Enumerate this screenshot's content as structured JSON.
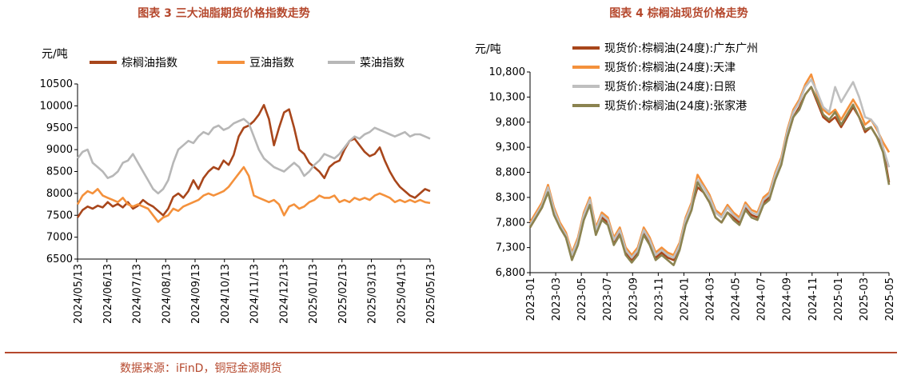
{
  "charts": [
    {
      "title": "图表 3  三大油脂期货价格指数走势",
      "chart_data": {
        "type": "line",
        "ylabel": "元/吨",
        "ylim": [
          6500,
          10500
        ],
        "yticks": [
          6500,
          7000,
          7500,
          8000,
          8500,
          9000,
          9500,
          10000,
          10500
        ],
        "x_tick_labels": [
          "2024/05/13",
          "2024/06/13",
          "2024/07/13",
          "2024/08/13",
          "2024/09/13",
          "2024/10/13",
          "2024/11/13",
          "2024/12/13",
          "2025/01/13",
          "2025/02/13",
          "2025/03/13",
          "2025/04/13",
          "2025/05/13"
        ],
        "legend_position": "top",
        "series": [
          {
            "name": "棕榈油指数",
            "color": "#a8461b",
            "values": [
              7450,
              7620,
              7700,
              7650,
              7720,
              7680,
              7800,
              7700,
              7760,
              7680,
              7800,
              7650,
              7720,
              7850,
              7760,
              7700,
              7600,
              7500,
              7650,
              7920,
              8000,
              7900,
              8050,
              8300,
              8100,
              8350,
              8500,
              8600,
              8550,
              8750,
              8650,
              8880,
              9300,
              9500,
              9550,
              9650,
              9800,
              10020,
              9700,
              9100,
              9500,
              9850,
              9920,
              9500,
              9000,
              8900,
              8700,
              8600,
              8500,
              8350,
              8600,
              8700,
              8750,
              9000,
              9200,
              9250,
              9100,
              8950,
              8850,
              8900,
              9050,
              8750,
              8500,
              8300,
              8150,
              8050,
              7950,
              7900,
              8000,
              8100,
              8050
            ]
          },
          {
            "name": "豆油指数",
            "color": "#f4913c",
            "values": [
              7750,
              7950,
              8050,
              8000,
              8100,
              7950,
              7900,
              7850,
              7800,
              7900,
              7750,
              7700,
              7750,
              7700,
              7650,
              7500,
              7350,
              7450,
              7500,
              7650,
              7600,
              7700,
              7750,
              7800,
              7850,
              7950,
              8000,
              7950,
              8000,
              8050,
              8150,
              8300,
              8450,
              8600,
              8400,
              7950,
              7900,
              7850,
              7800,
              7850,
              7750,
              7500,
              7700,
              7750,
              7650,
              7700,
              7800,
              7850,
              7950,
              7900,
              7900,
              7950,
              7800,
              7850,
              7800,
              7900,
              7850,
              7900,
              7850,
              7950,
              8000,
              7950,
              7900,
              7800,
              7850,
              7800,
              7850,
              7800,
              7850,
              7800,
              7780
            ]
          },
          {
            "name": "菜油指数",
            "color": "#b7b7b7",
            "values": [
              8800,
              8950,
              9000,
              8700,
              8600,
              8500,
              8350,
              8400,
              8500,
              8700,
              8750,
              8900,
              8700,
              8500,
              8300,
              8100,
              8000,
              8100,
              8300,
              8700,
              9000,
              9100,
              9200,
              9150,
              9300,
              9400,
              9350,
              9500,
              9550,
              9450,
              9500,
              9600,
              9650,
              9700,
              9600,
              9300,
              9000,
              8800,
              8700,
              8600,
              8550,
              8500,
              8600,
              8700,
              8600,
              8400,
              8500,
              8650,
              8750,
              8900,
              8850,
              8800,
              8900,
              9050,
              9200,
              9300,
              9250,
              9350,
              9400,
              9500,
              9450,
              9400,
              9350,
              9300,
              9350,
              9400,
              9300,
              9350,
              9350,
              9300,
              9250
            ]
          }
        ]
      }
    },
    {
      "title": "图表 4  棕榈油现货价格走势",
      "chart_data": {
        "type": "line",
        "ylabel": "元/吨",
        "ylim": [
          6800,
          10800
        ],
        "yticks": [
          "6,800",
          "7,300",
          "7,800",
          "8,300",
          "8,800",
          "9,300",
          "9,800",
          "10,300",
          "10,800"
        ],
        "ytick_values": [
          6800,
          7300,
          7800,
          8300,
          8800,
          9300,
          9800,
          10300,
          10800
        ],
        "x_tick_labels": [
          "2023-01",
          "2023-03",
          "2023-05",
          "2023-07",
          "2023-09",
          "2023-11",
          "2024-01",
          "2024-03",
          "2024-05",
          "2024-07",
          "2024-09",
          "2024-11",
          "2025-01",
          "2025-03",
          "2025-05"
        ],
        "legend_position": "top-right",
        "series": [
          {
            "name": "现货价:棕榈油(24度):广东广州",
            "color": "#a8461b",
            "values": [
              7700,
              7900,
              8100,
              8450,
              8000,
              7700,
              7500,
              7100,
              7400,
              7900,
              8200,
              7600,
              7900,
              7800,
              7400,
              7600,
              7200,
              7050,
              7200,
              7600,
              7400,
              7100,
              7200,
              7100,
              7050,
              7300,
              7800,
              8100,
              8500,
              8400,
              8200,
              7900,
              7800,
              8000,
              7900,
              7800,
              8100,
              7950,
              7900,
              8200,
              8300,
              8700,
              9000,
              9500,
              9900,
              10100,
              10350,
              10500,
              10200,
              9900,
              9800,
              9900,
              9700,
              9900,
              10100,
              9900,
              9600,
              9700,
              9500,
              9300,
              8600
            ]
          },
          {
            "name": "现货价:棕榈油(24度):天津",
            "color": "#f4913c",
            "values": [
              7800,
              8000,
              8200,
              8550,
              8100,
              7800,
              7600,
              7200,
              7500,
              8000,
              8300,
              7700,
              8000,
              7900,
              7500,
              7700,
              7300,
              7150,
              7300,
              7700,
              7500,
              7200,
              7300,
              7200,
              7150,
              7400,
              7900,
              8200,
              8750,
              8550,
              8350,
              8050,
              7950,
              8150,
              8000,
              7900,
              8200,
              8050,
              8000,
              8300,
              8400,
              8800,
              9100,
              9650,
              10050,
              10250,
              10550,
              10750,
              10350,
              10050,
              9950,
              10050,
              9850,
              10050,
              10250,
              10050,
              9750,
              9850,
              9650,
              9400,
              9200
            ]
          },
          {
            "name": "现货价:棕榈油(24度):日照",
            "color": "#bfbfbf",
            "values": [
              7750,
              7950,
              8150,
              8500,
              8050,
              7750,
              7550,
              7150,
              7450,
              7950,
              8250,
              7650,
              7950,
              7850,
              7450,
              7650,
              7250,
              7100,
              7250,
              7650,
              7450,
              7150,
              7250,
              7150,
              7100,
              7350,
              7850,
              8150,
              8650,
              8500,
              8300,
              8000,
              7900,
              8100,
              7950,
              7850,
              8150,
              8000,
              7950,
              8250,
              8350,
              8750,
              9050,
              9600,
              10000,
              10200,
              10500,
              10650,
              10400,
              10100,
              10000,
              10500,
              10200,
              10400,
              10600,
              10300,
              9900,
              9850,
              9700,
              9300,
              8900
            ]
          },
          {
            "name": "现货价:棕榈油(24度):张家港",
            "color": "#8b8350",
            "values": [
              7700,
              7900,
              8100,
              8400,
              7950,
              7700,
              7500,
              7050,
              7350,
              7850,
              8150,
              7550,
              7850,
              7750,
              7350,
              7550,
              7150,
              7000,
              7150,
              7550,
              7350,
              7050,
              7150,
              7050,
              6950,
              7250,
              7750,
              8050,
              8600,
              8400,
              8200,
              7900,
              7800,
              8000,
              7850,
              7750,
              8050,
              7900,
              7850,
              8150,
              8250,
              8650,
              8950,
              9500,
              9900,
              10050,
              10350,
              10500,
              10250,
              9950,
              9850,
              10000,
              9750,
              9950,
              10150,
              9900,
              9650,
              9700,
              9500,
              9200,
              8550
            ]
          }
        ]
      }
    }
  ],
  "source": "数据来源：iFinD，铜冠金源期货"
}
